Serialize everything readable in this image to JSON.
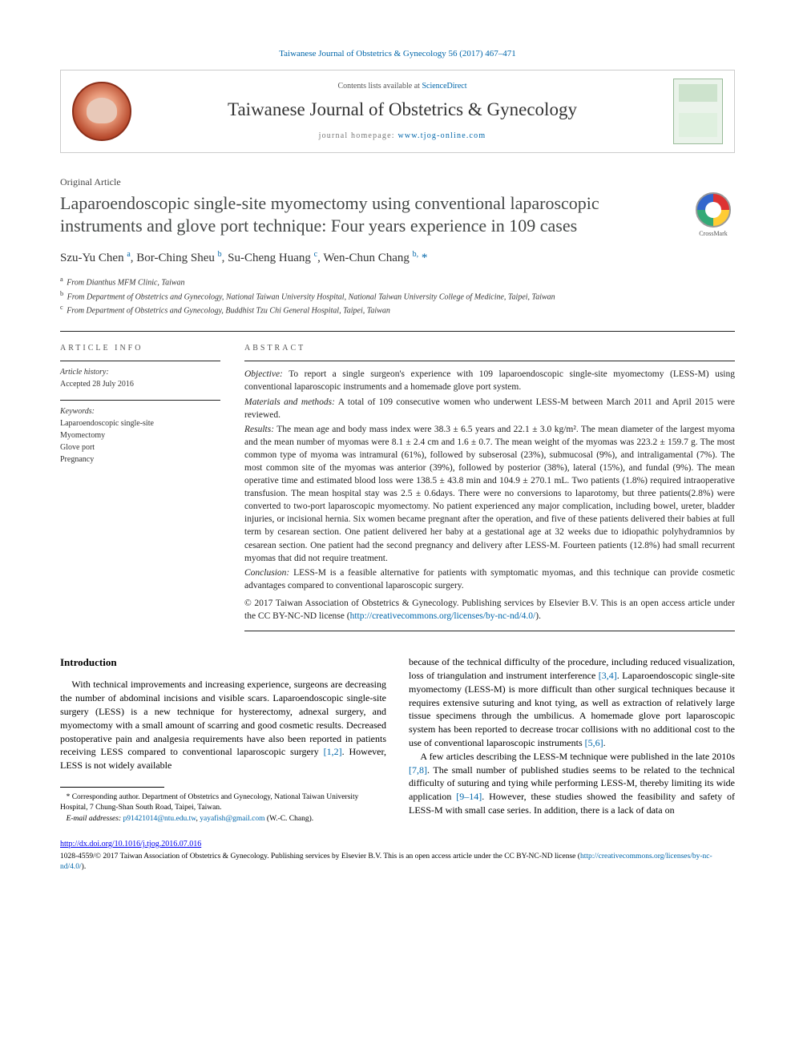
{
  "citation": "Taiwanese Journal of Obstetrics & Gynecology 56 (2017) 467–471",
  "masthead": {
    "contents_prefix": "Contents lists available at ",
    "contents_link": "ScienceDirect",
    "journal": "Taiwanese Journal of Obstetrics & Gynecology",
    "homepage_prefix": "journal homepage: ",
    "homepage_url": "www.tjog-online.com"
  },
  "article_type": "Original Article",
  "title": "Laparoendoscopic single-site myomectomy using conventional laparoscopic instruments and glove port technique: Four years experience in 109 cases",
  "crossmark_label": "CrossMark",
  "authors_html": "Szu-Yu Chen <sup>a</sup>, Bor-Ching Sheu <sup>b</sup>, Su-Cheng Huang <sup>c</sup>, Wen-Chun Chang <sup>b,</sup> <span class='star'>*</span>",
  "affiliations": [
    {
      "sup": "a",
      "text": "From Dianthus MFM Clinic, Taiwan"
    },
    {
      "sup": "b",
      "text": "From Department of Obstetrics and Gynecology, National Taiwan University Hospital, National Taiwan University College of Medicine, Taipei, Taiwan"
    },
    {
      "sup": "c",
      "text": "From Department of Obstetrics and Gynecology, Buddhist Tzu Chi General Hospital, Taipei, Taiwan"
    }
  ],
  "article_info": {
    "heading": "ARTICLE INFO",
    "history_label": "Article history:",
    "history_value": "Accepted 28 July 2016",
    "keywords_label": "Keywords:",
    "keywords": [
      "Laparoendoscopic single-site",
      "Myomectomy",
      "Glove port",
      "Pregnancy"
    ]
  },
  "abstract": {
    "heading": "ABSTRACT",
    "objective_label": "Objective:",
    "objective": "To report a single surgeon's experience with 109 laparoendoscopic single-site myomectomy (LESS-M) using conventional laparoscopic instruments and a homemade glove port system.",
    "methods_label": "Materials and methods:",
    "methods": "A total of 109 consecutive women who underwent LESS-M between March 2011 and April 2015 were reviewed.",
    "results_label": "Results:",
    "results": "The mean age and body mass index were 38.3 ± 6.5 years and 22.1 ± 3.0 kg/m². The mean diameter of the largest myoma and the mean number of myomas were 8.1 ± 2.4 cm and 1.6 ± 0.7. The mean weight of the myomas was 223.2 ± 159.7 g. The most common type of myoma was intramural (61%), followed by subserosal (23%), submucosal (9%), and intraligamental (7%). The most common site of the myomas was anterior (39%), followed by posterior (38%), lateral (15%), and fundal (9%). The mean operative time and estimated blood loss were 138.5 ± 43.8 min and 104.9 ± 270.1 mL. Two patients (1.8%) required intraoperative transfusion. The mean hospital stay was 2.5 ± 0.6days. There were no conversions to laparotomy, but three patients(2.8%) were converted to two-port laparoscopic myomectomy. No patient experienced any major complication, including bowel, ureter, bladder injuries, or incisional hernia. Six women became pregnant after the operation, and five of these patients delivered their babies at full term by cesarean section. One patient delivered her baby at a gestational age at 32 weeks due to idiopathic polyhydramnios by cesarean section. One patient had the second pregnancy and delivery after LESS-M. Fourteen patients (12.8%) had small recurrent myomas that did not require treatment.",
    "conclusion_label": "Conclusion:",
    "conclusion": "LESS-M is a feasible alternative for patients with symptomatic myomas, and this technique can provide cosmetic advantages compared to conventional laparoscopic surgery.",
    "copyright": "© 2017 Taiwan Association of Obstetrics & Gynecology. Publishing services by Elsevier B.V. This is an open access article under the CC BY-NC-ND license (",
    "license_url": "http://creativecommons.org/licenses/by-nc-nd/4.0/",
    "copyright_close": ")."
  },
  "body": {
    "intro_heading": "Introduction",
    "col1_p1a": "With technical improvements and increasing experience, surgeons are decreasing the number of abdominal incisions and visible scars. Laparoendoscopic single-site surgery (LESS) is a new technique for hysterectomy, adnexal surgery, and myomectomy with a small amount of scarring and good cosmetic results. Decreased postoperative pain and analgesia requirements have also been reported in patients receiving LESS compared to conventional laparoscopic surgery ",
    "ref12": "[1,2]",
    "col1_p1b": ". However, LESS is not widely available",
    "col2_p1a": "because of the technical difficulty of the procedure, including reduced visualization, loss of triangulation and instrument interference ",
    "ref34": "[3,4]",
    "col2_p1b": ". Laparoendoscopic single-site myomectomy (LESS-M) is more difficult than other surgical techniques because it requires extensive suturing and knot tying, as well as extraction of relatively large tissue specimens through the umbilicus. A homemade glove port laparoscopic system has been reported to decrease trocar collisions with no additional cost to the use of conventional laparoscopic instruments ",
    "ref56": "[5,6]",
    "col2_p1c": ".",
    "col2_p2a": "A few articles describing the LESS-M technique were published in the late 2010s ",
    "ref78": "[7,8]",
    "col2_p2b": ". The small number of published studies seems to be related to the technical difficulty of suturing and tying while performing LESS-M, thereby limiting its wide application ",
    "ref914": "[9–14]",
    "col2_p2c": ". However, these studies showed the feasibility and safety of LESS-M with small case series. In addition, there is a lack of data on"
  },
  "footnotes": {
    "corr": "* Corresponding author. Department of Obstetrics and Gynecology, National Taiwan University Hospital, 7 Chung-Shan South Road, Taipei, Taiwan.",
    "email_label": "E-mail addresses:",
    "email1": "p91421014@ntu.edu.tw",
    "email2": "yayafish@gmail.com",
    "email_tail": " (W.-C. Chang)."
  },
  "doi": "http://dx.doi.org/10.1016/j.tjog.2016.07.016",
  "footer_license": {
    "text": "1028-4559/© 2017 Taiwan Association of Obstetrics & Gynecology. Publishing services by Elsevier B.V. This is an open access article under the CC BY-NC-ND license (",
    "url": "http://creativecommons.org/licenses/by-nc-nd/4.0/",
    "close": ")."
  },
  "colors": {
    "link": "#0066aa",
    "text": "#222222",
    "rule": "#222222"
  }
}
